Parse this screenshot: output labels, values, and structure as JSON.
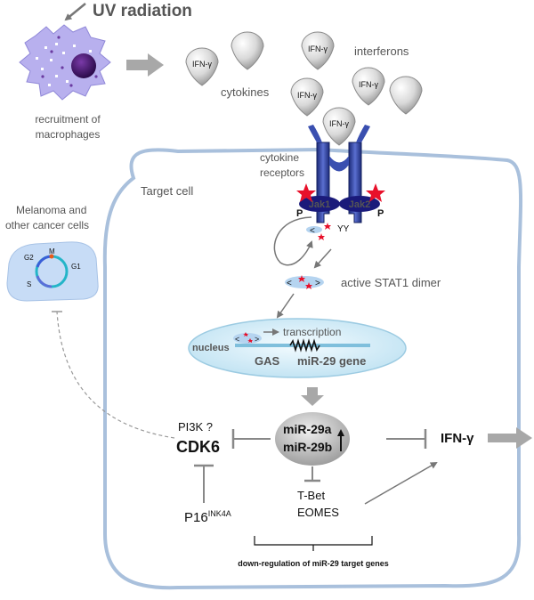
{
  "uv_label": "UV radiation",
  "macrophage_label_line1": "recruitment of",
  "macrophage_label_line2": "macrophages",
  "ifn_label": "IFN-γ",
  "interferons_label": "interferons",
  "cytokines_label": "cytokines",
  "receptor_label_line1": "cytokine",
  "receptor_label_line2": "receptors",
  "jak1_label": "Jak1",
  "jak2_label": "Jak2",
  "phospho_label": "P",
  "target_cell_label": "Target cell",
  "cancer_label_line1": "Melanoma and",
  "cancer_label_line2": "other cancer cells",
  "cell_cycle": {
    "m": "M",
    "g1": "G1",
    "g2": "G2",
    "s": "S"
  },
  "stat1_label": "active STAT1 dimer",
  "nucleus_label": "nucleus",
  "transcription_label": "transcription",
  "gas_label": "GAS",
  "mir29_gene_label": "miR-29 gene",
  "mir29a_label": "miR-29a",
  "mir29b_label": "miR-29b",
  "pi3k_label": "PI3K ?",
  "cdk6_label": "CDK6",
  "p16_label": "P16",
  "p16_sup": "INK4A",
  "tbet_label": "T-Bet",
  "eomes_label": "EOMES",
  "ifn_out_label": "IFN-γ",
  "downreg_label": "down-regulation of miR-29 target genes",
  "colors": {
    "cell_border": "#a9c0dc",
    "receptor": "#2a3f9a",
    "jak": "#1a1a7a",
    "star": "#e8102a",
    "mir_gene_text": "#e01010",
    "macrophage": "#b8b0ee",
    "nucleus": "#d7eef8"
  }
}
